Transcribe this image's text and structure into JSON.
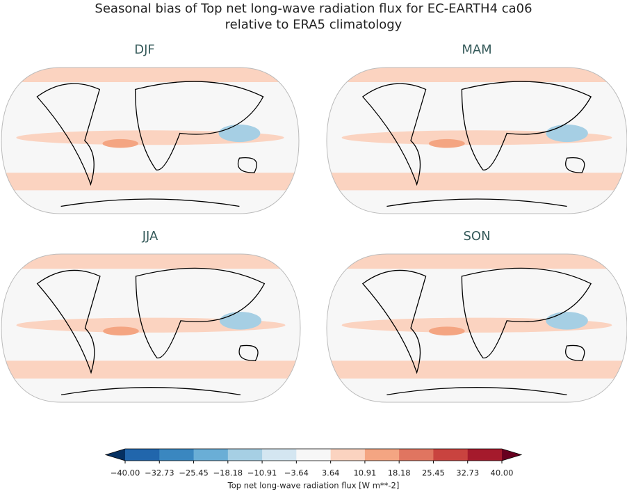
{
  "title": [
    "Seasonal bias of Top net long-wave radiation flux for EC-EARTH4 ca06",
    "relative to ERA5 climatology"
  ],
  "panels": [
    {
      "title": "DJF"
    },
    {
      "title": "MAM"
    },
    {
      "title": "JJA"
    },
    {
      "title": "SON"
    }
  ],
  "colorbar": {
    "ticks": [
      {
        "value": -40,
        "label": "−40.00"
      },
      {
        "value": -32.73,
        "label": "−32.73"
      },
      {
        "value": -25.45,
        "label": "−25.45"
      },
      {
        "value": -18.18,
        "label": "−18.18"
      },
      {
        "value": -10.91,
        "label": "−10.91"
      },
      {
        "value": -3.64,
        "label": "−3.64"
      },
      {
        "value": 3.64,
        "label": "3.64"
      },
      {
        "value": 10.91,
        "label": "10.91"
      },
      {
        "value": 18.18,
        "label": "18.18"
      },
      {
        "value": 25.45,
        "label": "25.45"
      },
      {
        "value": 32.73,
        "label": "32.73"
      },
      {
        "value": 40,
        "label": "40.00"
      }
    ],
    "colors": [
      "#2166ac",
      "#3a87c0",
      "#6aaed6",
      "#a6cfe4",
      "#d4e6f1",
      "#f7f7f7",
      "#fbd3c0",
      "#f4a582",
      "#e07560",
      "#c9433f",
      "#a51a2c"
    ],
    "extend_colors": [
      "#053061",
      "#67001f"
    ],
    "label": "Top net long-wave radiation flux [W m**-2]"
  }
}
